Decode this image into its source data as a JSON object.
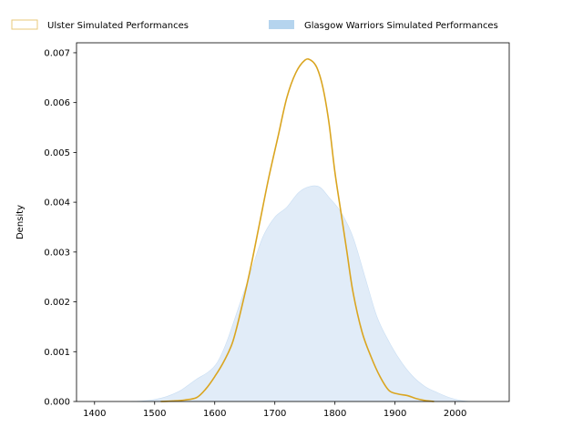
{
  "chart_data": {
    "type": "area",
    "title": "",
    "xlabel": "",
    "ylabel": "Density",
    "xlim": [
      1370,
      2090
    ],
    "ylim": [
      0,
      0.0072
    ],
    "x_ticks": [
      1400,
      1500,
      1600,
      1700,
      1800,
      1900,
      2000
    ],
    "y_ticks": [
      0.0,
      0.001,
      0.002,
      0.003,
      0.004,
      0.005,
      0.006,
      0.007
    ],
    "x_tick_labels": [
      "1400",
      "1500",
      "1600",
      "1700",
      "1800",
      "1900",
      "2000"
    ],
    "y_tick_labels": [
      "0.000",
      "0.001",
      "0.002",
      "0.003",
      "0.004",
      "0.005",
      "0.006",
      "0.007"
    ],
    "grid": false,
    "legend_position": "top, outside plot",
    "series": [
      {
        "name": "Ulster Simulated Performances",
        "style": "line",
        "color": "#DAA520",
        "points": [
          [
            1510,
            0.0
          ],
          [
            1530,
            1e-05
          ],
          [
            1550,
            3e-05
          ],
          [
            1570,
            8e-05
          ],
          [
            1585,
            0.00025
          ],
          [
            1600,
            0.0005
          ],
          [
            1615,
            0.0008
          ],
          [
            1630,
            0.0012
          ],
          [
            1645,
            0.0019
          ],
          [
            1660,
            0.0027
          ],
          [
            1675,
            0.0036
          ],
          [
            1690,
            0.0045
          ],
          [
            1705,
            0.0053
          ],
          [
            1720,
            0.0061
          ],
          [
            1735,
            0.0066
          ],
          [
            1750,
            0.00685
          ],
          [
            1760,
            0.00685
          ],
          [
            1770,
            0.0067
          ],
          [
            1780,
            0.0063
          ],
          [
            1790,
            0.0056
          ],
          [
            1800,
            0.0046
          ],
          [
            1810,
            0.0038
          ],
          [
            1820,
            0.003
          ],
          [
            1830,
            0.0022
          ],
          [
            1845,
            0.0014
          ],
          [
            1860,
            0.0009
          ],
          [
            1875,
            0.0005
          ],
          [
            1890,
            0.00022
          ],
          [
            1905,
            0.00015
          ],
          [
            1920,
            0.00012
          ],
          [
            1935,
            6e-05
          ],
          [
            1950,
            2e-05
          ],
          [
            1965,
            0.0
          ]
        ]
      },
      {
        "name": "Glasgow Warriors Simulated Performances",
        "style": "filled",
        "color": "#B5D4EE",
        "points": [
          [
            1460,
            0.0
          ],
          [
            1480,
            1e-05
          ],
          [
            1500,
            4e-05
          ],
          [
            1520,
            0.0001
          ],
          [
            1540,
            0.0002
          ],
          [
            1555,
            0.00032
          ],
          [
            1570,
            0.00045
          ],
          [
            1590,
            0.0006
          ],
          [
            1605,
            0.0008
          ],
          [
            1620,
            0.0012
          ],
          [
            1640,
            0.0019
          ],
          [
            1660,
            0.0026
          ],
          [
            1680,
            0.0033
          ],
          [
            1700,
            0.0037
          ],
          [
            1720,
            0.0039
          ],
          [
            1740,
            0.0042
          ],
          [
            1760,
            0.00432
          ],
          [
            1775,
            0.0043
          ],
          [
            1790,
            0.0041
          ],
          [
            1810,
            0.0038
          ],
          [
            1830,
            0.0033
          ],
          [
            1850,
            0.0025
          ],
          [
            1870,
            0.0017
          ],
          [
            1890,
            0.0012
          ],
          [
            1910,
            0.0008
          ],
          [
            1930,
            0.0005
          ],
          [
            1950,
            0.0003
          ],
          [
            1970,
            0.00018
          ],
          [
            1990,
            8e-05
          ],
          [
            2010,
            2e-05
          ],
          [
            2025,
            0.0
          ]
        ]
      }
    ]
  }
}
